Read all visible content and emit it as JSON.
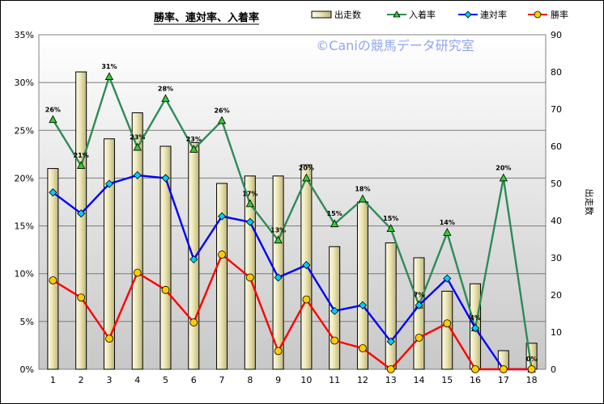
{
  "chart_data": {
    "type": "bar+line",
    "title": "勝率、連対率、入着率",
    "watermark": "©Caniの競馬データ研究室",
    "y2label": "出走数",
    "categories": [
      "1",
      "2",
      "3",
      "4",
      "5",
      "6",
      "7",
      "8",
      "9",
      "10",
      "11",
      "12",
      "13",
      "14",
      "15",
      "16",
      "17",
      "18"
    ],
    "left_axis": {
      "ylim": [
        0,
        35
      ],
      "ticks": [
        "0%",
        "5%",
        "10%",
        "15%",
        "20%",
        "25%",
        "30%",
        "35%"
      ]
    },
    "right_axis": {
      "ylim": [
        0,
        90
      ],
      "ticks": [
        "0",
        "10",
        "20",
        "30",
        "40",
        "50",
        "60",
        "70",
        "80",
        "90"
      ]
    },
    "legend": [
      "出走数",
      "入着率",
      "連対率",
      "勝率"
    ],
    "series": [
      {
        "name": "出走数",
        "type": "bar",
        "axis": "right",
        "color": "#e6e0a4",
        "values": [
          54,
          80,
          62,
          69,
          60,
          61,
          50,
          52,
          52,
          55,
          33,
          45,
          34,
          30,
          21,
          23,
          5,
          7
        ]
      },
      {
        "name": "入着率",
        "type": "line",
        "axis": "left",
        "unit": "%",
        "color": "#2e8b57",
        "values": [
          26.1,
          21.3,
          30.6,
          23.2,
          28.3,
          23.0,
          26.0,
          17.3,
          13.5,
          20.0,
          15.2,
          17.8,
          14.7,
          6.7,
          14.3,
          4.3,
          20.0,
          0
        ],
        "labels": [
          "26%",
          "21%",
          "31%",
          "23%",
          "28%",
          "23%",
          "26%",
          "17%",
          "13%",
          "20%",
          "15%",
          "18%",
          "15%",
          "7%",
          "14%",
          "4%",
          "20%",
          "0%"
        ]
      },
      {
        "name": "連対率",
        "type": "line",
        "axis": "left",
        "unit": "%",
        "color": "#0000ff",
        "values": [
          18.5,
          16.3,
          19.4,
          20.3,
          20.0,
          11.5,
          16.0,
          15.4,
          9.6,
          10.9,
          6.1,
          6.7,
          2.9,
          6.7,
          9.5,
          4.3,
          0,
          0
        ]
      },
      {
        "name": "勝率",
        "type": "line",
        "axis": "left",
        "unit": "%",
        "color": "#ff0000",
        "values": [
          9.3,
          7.5,
          3.2,
          10.1,
          8.3,
          4.9,
          12.0,
          9.6,
          1.9,
          7.3,
          3.0,
          2.2,
          0,
          3.3,
          4.8,
          0,
          0,
          0
        ]
      }
    ]
  }
}
